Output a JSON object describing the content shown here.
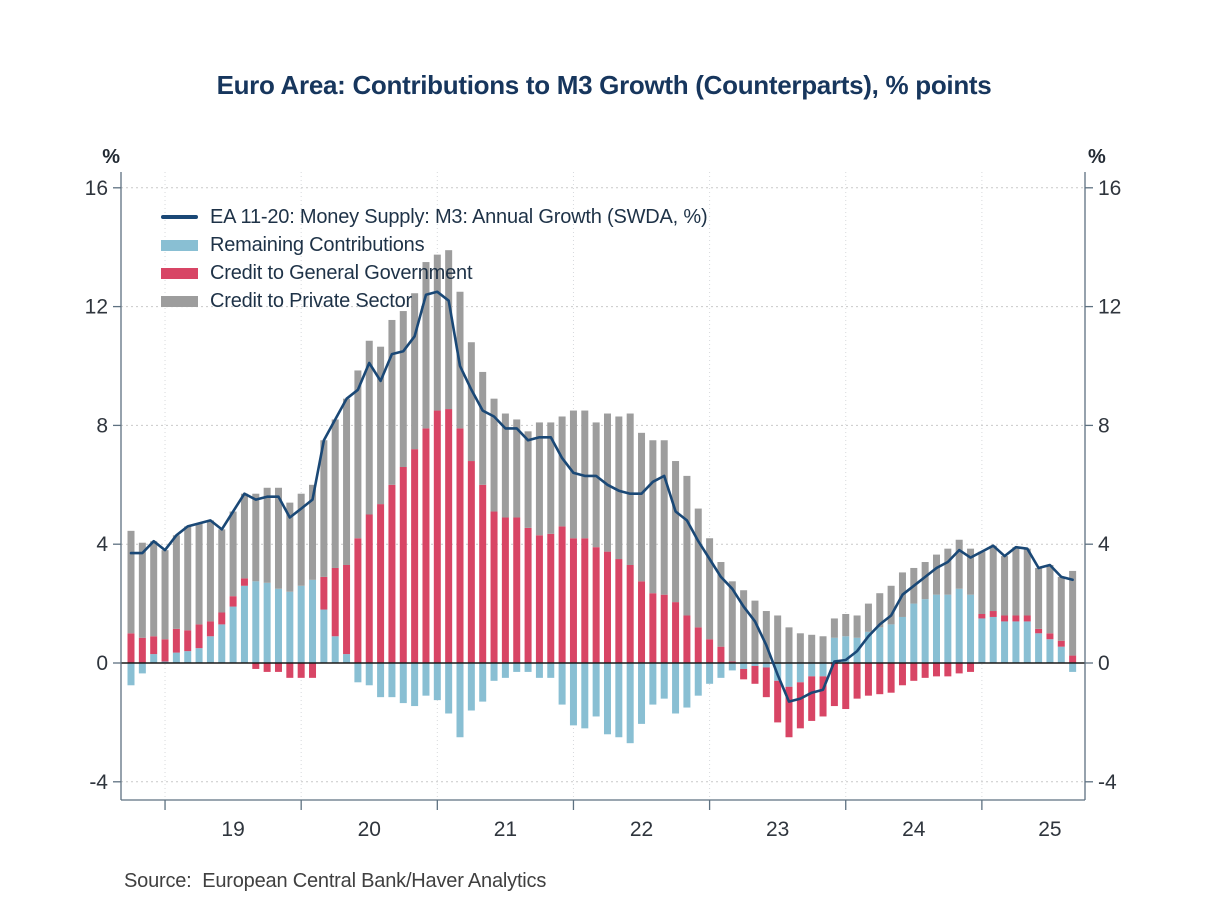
{
  "title": "Euro Area: Contributions to M3 Growth (Counterparts), % points",
  "source": "Source:  European Central Bank/Haver Analytics",
  "y_axis": {
    "unit": "%",
    "ticks": [
      16,
      12,
      8,
      4,
      0,
      -4
    ],
    "min": -4,
    "max": 16
  },
  "x_axis": {
    "year_labels": [
      "19",
      "20",
      "21",
      "22",
      "23",
      "24",
      "25"
    ]
  },
  "colors": {
    "background": "#ffffff",
    "title_text": "#17365d",
    "legend_text": "#1e3247",
    "axis_text": "#2f353d",
    "axis_line": "#5e7181",
    "gridline": "#c9c9c9",
    "year_gridline": "#d6d9dc",
    "zero_line": "#1a1a1a",
    "source_text": "#404040"
  },
  "chart_data": {
    "type": "bar",
    "subtype": "stacked-bars-with-line-overlay",
    "title": "Euro Area: Contributions to M3 Growth (Counterparts), % points",
    "xlabel": "",
    "ylabel": "% points",
    "ylim": [
      -4,
      16
    ],
    "grid": "dotted horizontal at 16/12/8/4/-4, dotted vertical at each January, solid black zero line",
    "legend_position": "top-left inside plot",
    "x": [
      "2018-10",
      "2018-11",
      "2018-12",
      "2019-01",
      "2019-02",
      "2019-03",
      "2019-04",
      "2019-05",
      "2019-06",
      "2019-07",
      "2019-08",
      "2019-09",
      "2019-10",
      "2019-11",
      "2019-12",
      "2020-01",
      "2020-02",
      "2020-03",
      "2020-04",
      "2020-05",
      "2020-06",
      "2020-07",
      "2020-08",
      "2020-09",
      "2020-10",
      "2020-11",
      "2020-12",
      "2021-01",
      "2021-02",
      "2021-03",
      "2021-04",
      "2021-05",
      "2021-06",
      "2021-07",
      "2021-08",
      "2021-09",
      "2021-10",
      "2021-11",
      "2021-12",
      "2022-01",
      "2022-02",
      "2022-03",
      "2022-04",
      "2022-05",
      "2022-06",
      "2022-07",
      "2022-08",
      "2022-09",
      "2022-10",
      "2022-11",
      "2022-12",
      "2023-01",
      "2023-02",
      "2023-03",
      "2023-04",
      "2023-05",
      "2023-06",
      "2023-07",
      "2023-08",
      "2023-09",
      "2023-10",
      "2023-11",
      "2023-12",
      "2024-01",
      "2024-02",
      "2024-03",
      "2024-04",
      "2024-05",
      "2024-06",
      "2024-07",
      "2024-08",
      "2024-09",
      "2024-10",
      "2024-11",
      "2024-12",
      "2025-01",
      "2025-02",
      "2025-03",
      "2025-04",
      "2025-05",
      "2025-06",
      "2025-07",
      "2025-08",
      "2025-09"
    ],
    "series": [
      {
        "name": "EA 11-20: Money Supply: M3: Annual Growth (SWDA, %)",
        "type": "line",
        "color": "#1a4876",
        "values": [
          3.7,
          3.7,
          4.1,
          3.8,
          4.3,
          4.6,
          4.7,
          4.8,
          4.5,
          5.1,
          5.7,
          5.5,
          5.6,
          5.6,
          4.9,
          5.2,
          5.5,
          7.5,
          8.2,
          8.9,
          9.2,
          10.1,
          9.5,
          10.4,
          10.5,
          11.0,
          12.4,
          12.5,
          12.2,
          10.0,
          9.2,
          8.5,
          8.3,
          7.9,
          7.9,
          7.5,
          7.6,
          7.6,
          6.9,
          6.4,
          6.3,
          6.3,
          6.0,
          5.8,
          5.7,
          5.7,
          6.1,
          6.3,
          5.1,
          4.8,
          4.1,
          3.5,
          2.9,
          2.5,
          1.9,
          1.4,
          0.6,
          -0.4,
          -1.3,
          -1.2,
          -1.0,
          -0.9,
          0.05,
          0.1,
          0.4,
          0.9,
          1.3,
          1.6,
          2.3,
          2.6,
          2.9,
          3.2,
          3.4,
          3.8,
          3.55,
          3.75,
          3.95,
          3.6,
          3.9,
          3.85,
          3.2,
          3.3,
          2.9,
          2.8
        ]
      },
      {
        "name": "Remaining Contributions",
        "type": "bar",
        "color": "#89bfd3",
        "values": [
          -0.75,
          -0.35,
          0.3,
          0.05,
          0.35,
          0.4,
          0.5,
          0.9,
          1.3,
          1.9,
          2.6,
          2.75,
          2.7,
          2.5,
          2.4,
          2.6,
          2.8,
          1.8,
          0.9,
          0.3,
          -0.65,
          -0.75,
          -1.15,
          -1.15,
          -1.35,
          -1.45,
          -1.1,
          -1.25,
          -1.7,
          -2.5,
          -1.6,
          -1.3,
          -0.6,
          -0.5,
          -0.3,
          -0.3,
          -0.5,
          -0.5,
          -1.4,
          -2.1,
          -2.2,
          -1.8,
          -2.4,
          -2.5,
          -2.7,
          -2.05,
          -1.4,
          -1.2,
          -1.7,
          -1.5,
          -1.1,
          -0.7,
          -0.5,
          -0.25,
          -0.2,
          -0.1,
          -0.15,
          -0.6,
          -0.8,
          -0.65,
          -0.45,
          -0.45,
          0.85,
          0.9,
          0.85,
          1.05,
          1.2,
          1.3,
          1.55,
          2.0,
          2.15,
          2.3,
          2.3,
          2.5,
          2.3,
          1.5,
          1.55,
          1.4,
          1.4,
          1.4,
          1.0,
          0.8,
          0.55,
          -0.3
        ]
      },
      {
        "name": "Credit to General Government",
        "type": "bar",
        "color": "#d84565",
        "values": [
          1.0,
          0.85,
          0.6,
          0.75,
          0.8,
          0.7,
          0.8,
          0.5,
          0.4,
          0.35,
          0.25,
          -0.2,
          -0.3,
          -0.3,
          -0.5,
          -0.5,
          -0.5,
          1.1,
          2.3,
          3.0,
          4.2,
          5.0,
          5.35,
          6.0,
          6.6,
          7.2,
          7.9,
          8.5,
          8.55,
          7.9,
          6.8,
          6.0,
          5.1,
          4.9,
          4.9,
          4.55,
          4.3,
          4.35,
          4.6,
          4.2,
          4.2,
          3.9,
          3.75,
          3.5,
          3.3,
          2.75,
          2.35,
          2.3,
          2.05,
          1.6,
          1.2,
          0.8,
          0.55,
          0.05,
          -0.35,
          -0.6,
          -1.0,
          -1.4,
          -1.7,
          -1.55,
          -1.5,
          -1.35,
          -1.45,
          -1.55,
          -1.2,
          -1.1,
          -1.05,
          -1.0,
          -0.75,
          -0.6,
          -0.5,
          -0.45,
          -0.45,
          -0.35,
          -0.3,
          0.15,
          0.2,
          0.2,
          0.2,
          0.2,
          0.15,
          0.2,
          0.2,
          0.25
        ]
      },
      {
        "name": "Credit to Private Sector",
        "type": "bar",
        "color": "#9d9d9d",
        "values": [
          3.45,
          3.2,
          3.2,
          3.0,
          3.15,
          3.5,
          3.4,
          3.4,
          2.8,
          2.85,
          2.85,
          2.95,
          3.2,
          3.4,
          3.0,
          3.1,
          3.2,
          4.6,
          5.0,
          5.6,
          5.65,
          5.85,
          5.3,
          5.55,
          5.25,
          5.25,
          5.6,
          5.25,
          5.35,
          4.6,
          4.0,
          3.8,
          3.8,
          3.5,
          3.3,
          3.25,
          3.8,
          3.75,
          3.7,
          4.3,
          4.3,
          4.2,
          4.65,
          4.8,
          5.1,
          5.0,
          5.15,
          5.2,
          4.75,
          4.7,
          4.0,
          3.4,
          2.85,
          2.7,
          2.45,
          2.1,
          1.75,
          1.6,
          1.2,
          1.0,
          0.95,
          0.9,
          0.65,
          0.75,
          0.75,
          0.95,
          1.15,
          1.3,
          1.5,
          1.2,
          1.25,
          1.35,
          1.55,
          1.65,
          1.55,
          2.1,
          2.2,
          2.0,
          2.3,
          2.25,
          2.05,
          2.3,
          2.15,
          2.85
        ]
      }
    ]
  }
}
